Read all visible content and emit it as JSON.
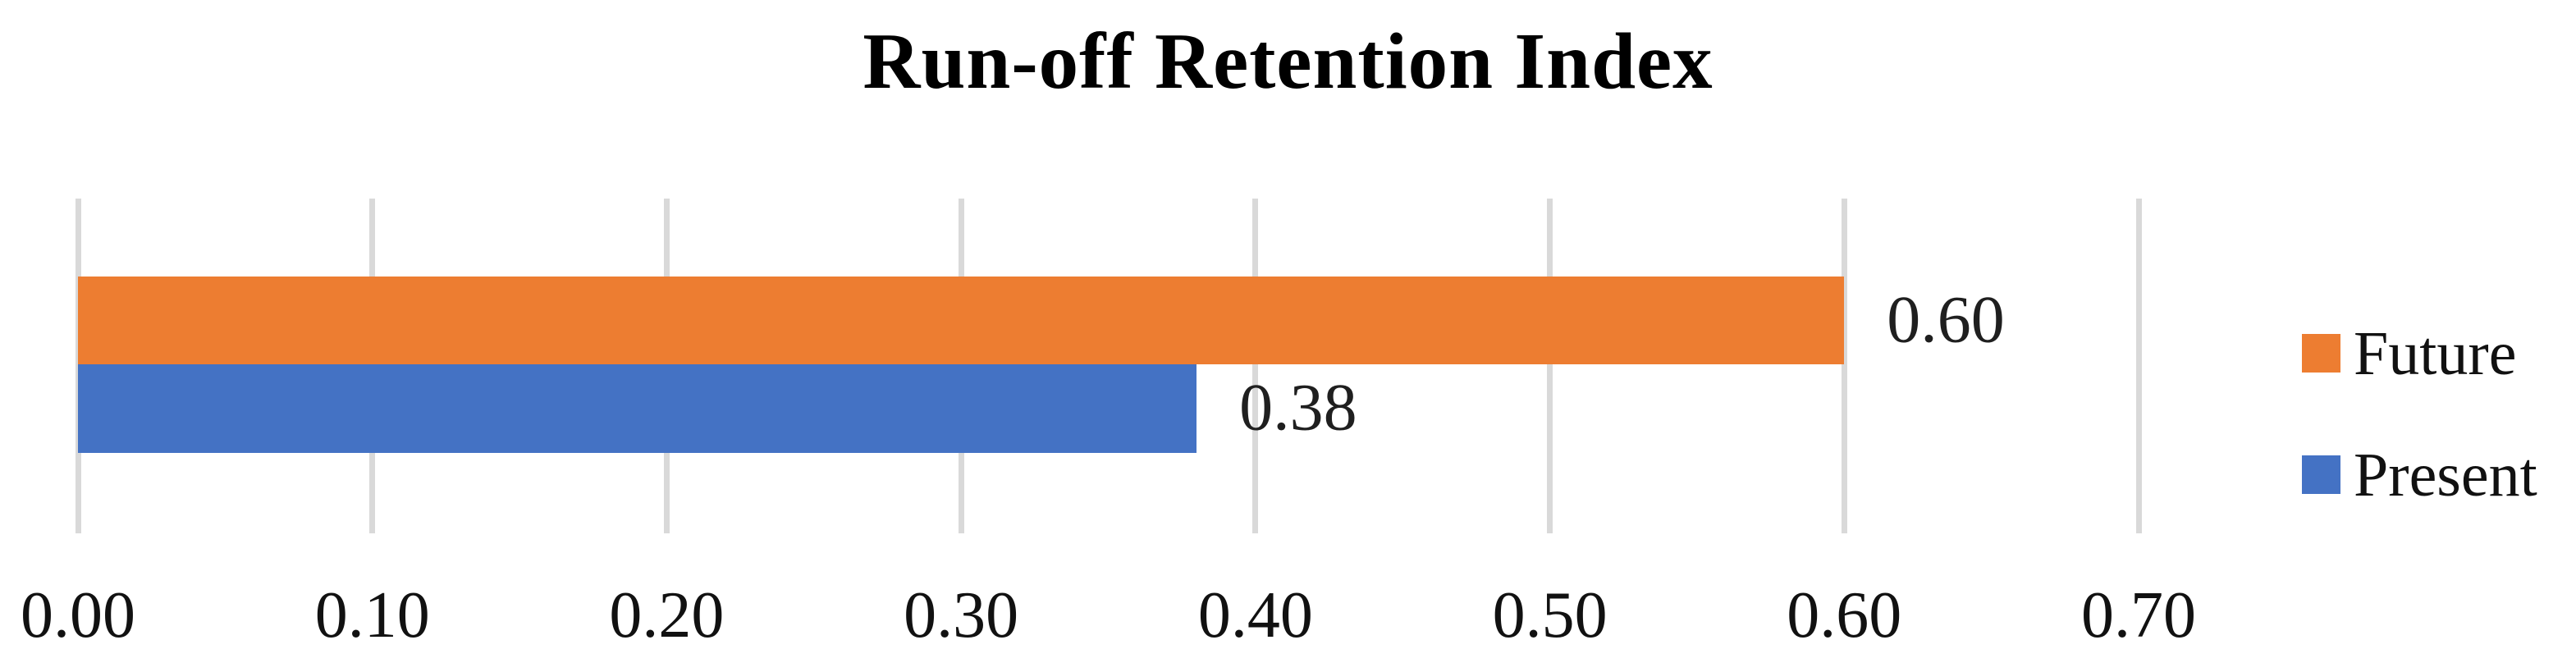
{
  "figure": {
    "title": "Run-off Retention Index"
  },
  "chart_data": {
    "type": "bar",
    "orientation": "horizontal",
    "title": "Run-off Retention Index",
    "categories": [
      "Run-off Retention Index"
    ],
    "series": [
      {
        "name": "Future",
        "values": [
          0.6
        ],
        "data_label": "0.60",
        "color": "#ED7D31"
      },
      {
        "name": "Present",
        "values": [
          0.38
        ],
        "data_label": "0.38",
        "color": "#4472C4"
      }
    ],
    "xlabel": "",
    "ylabel": "",
    "xlim": [
      0.0,
      0.7
    ],
    "xtick_labels": [
      "0.00",
      "0.10",
      "0.20",
      "0.30",
      "0.40",
      "0.50",
      "0.60",
      "0.70"
    ],
    "grid": true,
    "gridline_color": "#D9D9D9",
    "text_color": "#111111",
    "data_label_color": "#1f1f1f",
    "background_color": "#FFFFFF",
    "legend_position": "right",
    "legend": [
      "Future",
      "Present"
    ]
  }
}
